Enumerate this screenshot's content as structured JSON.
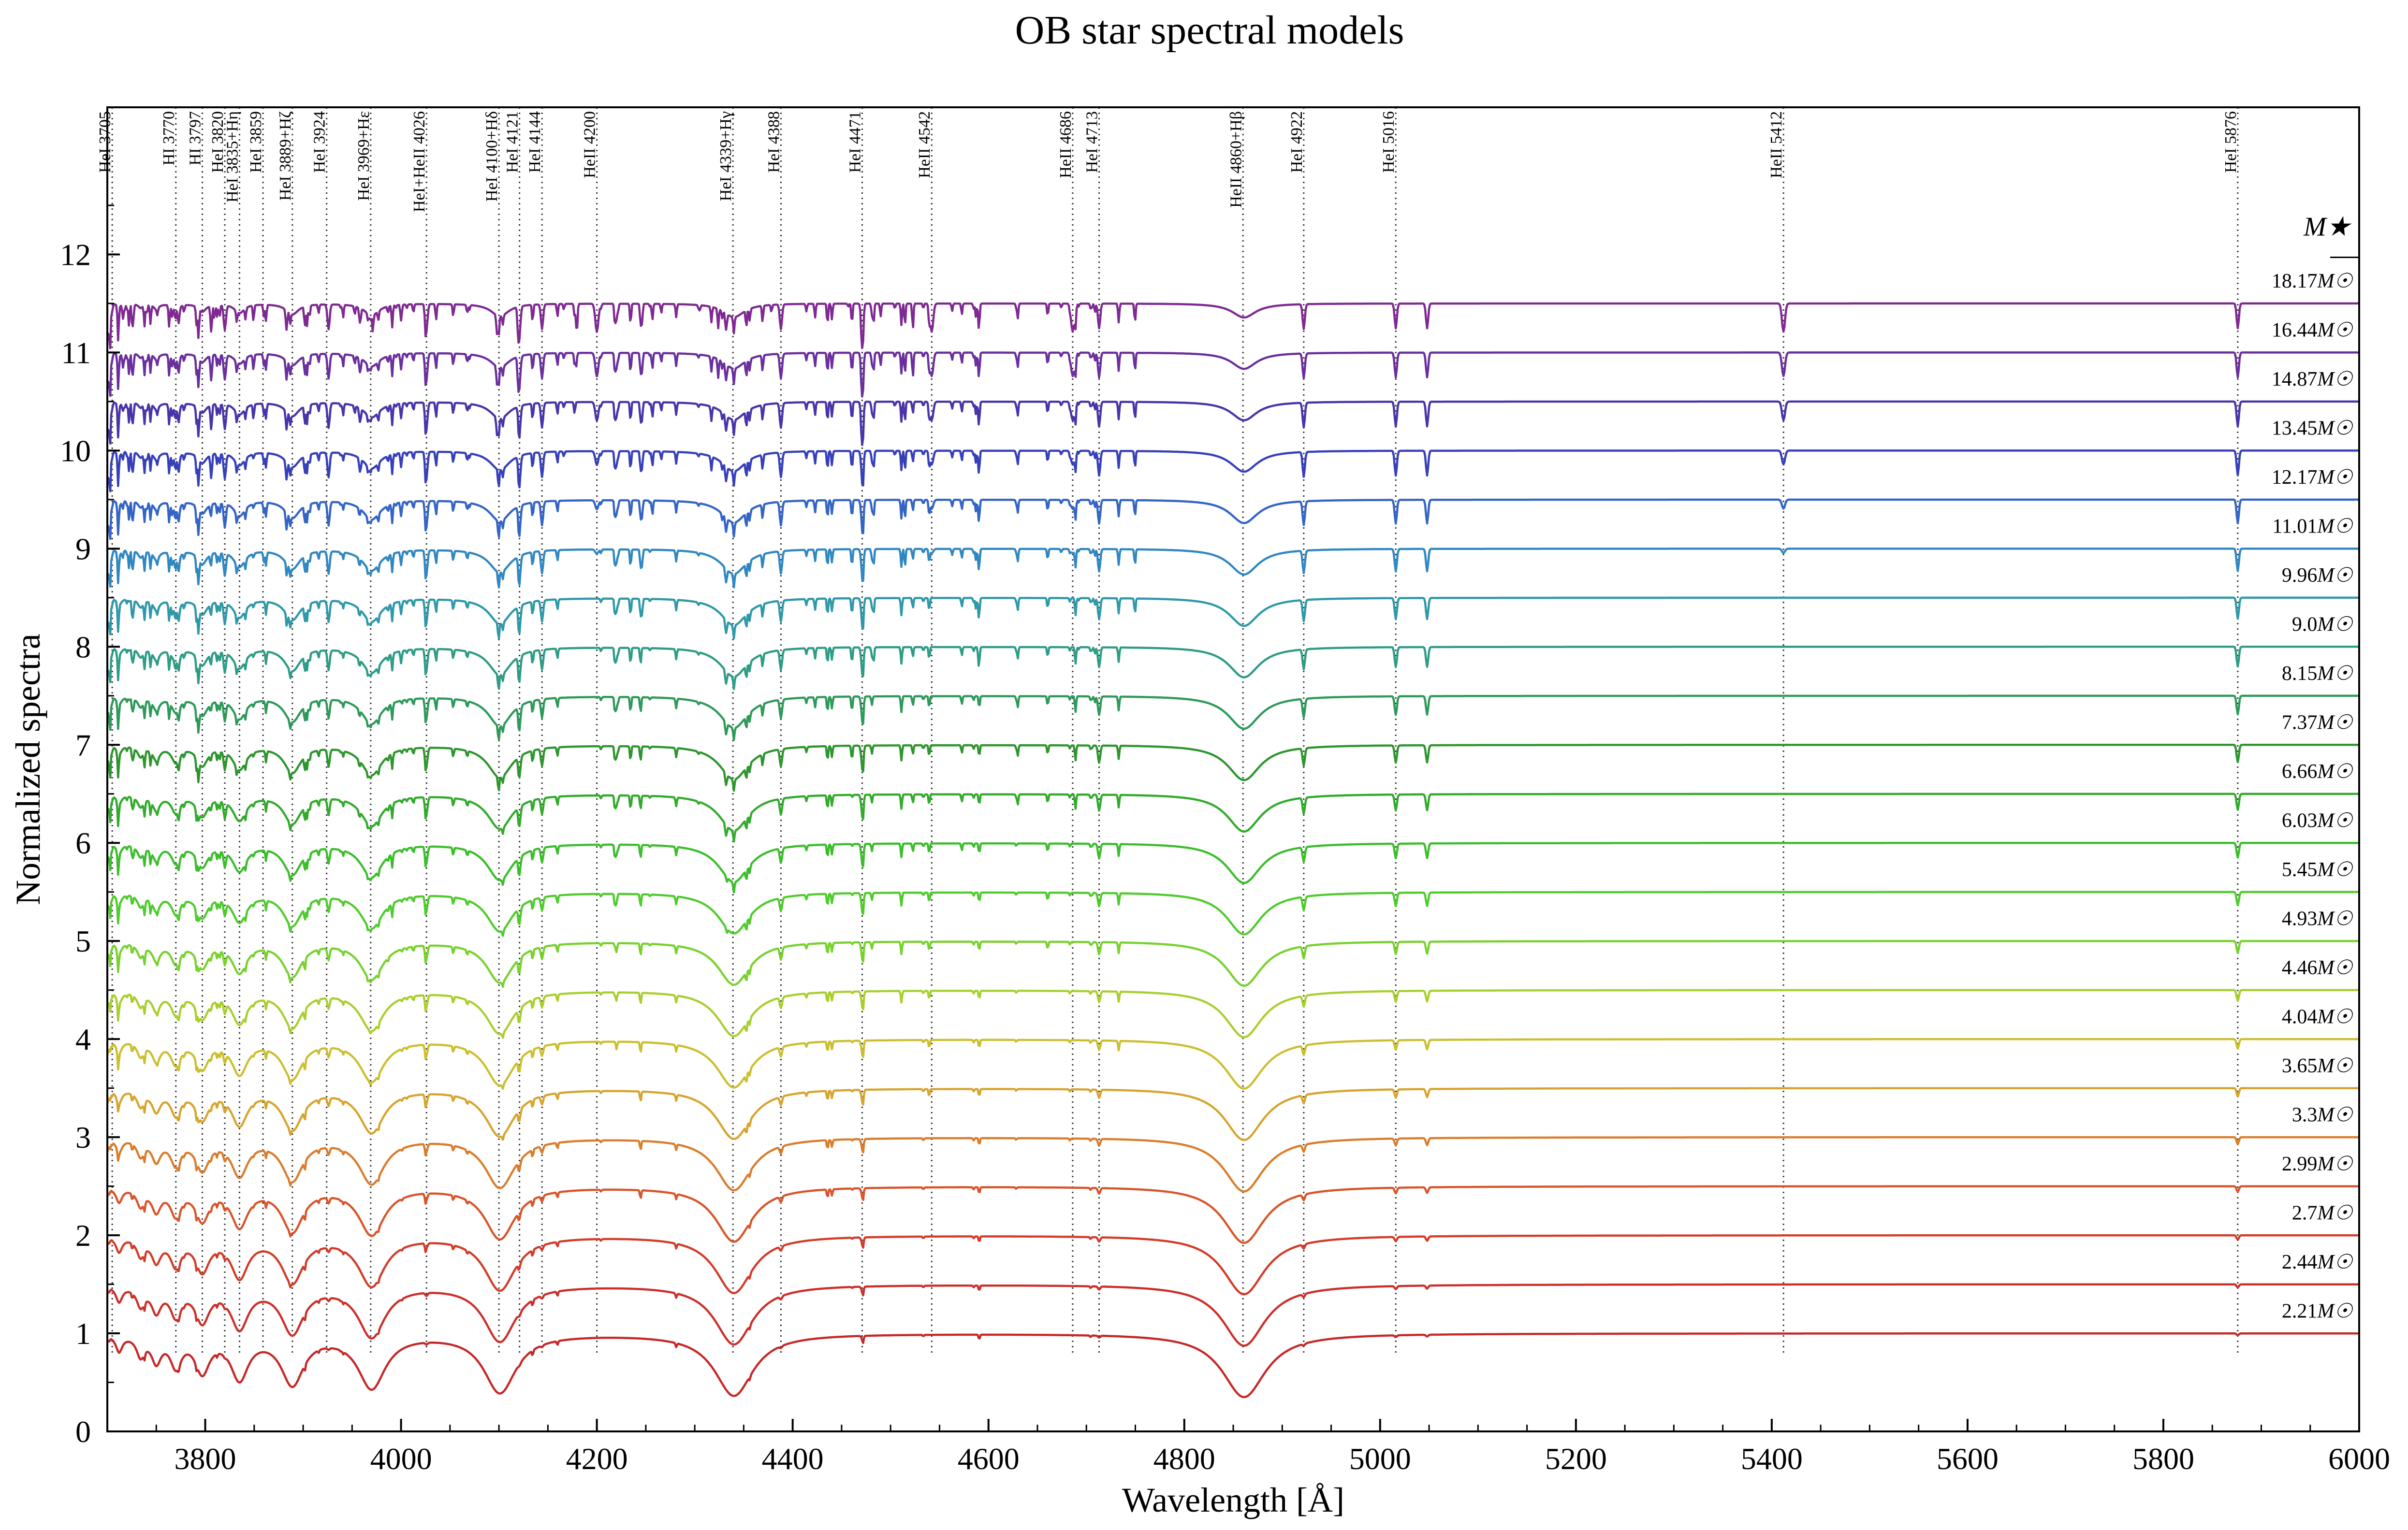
{
  "chart_data": {
    "type": "line",
    "title": "OB star spectral models",
    "xlabel": "Wavelength [Å]",
    "ylabel": "Normalized spectra",
    "xlim": [
      3700,
      6000
    ],
    "ylim": [
      0,
      13.5
    ],
    "xticks": [
      3800,
      4000,
      4200,
      4400,
      4600,
      4800,
      5000,
      5200,
      5400,
      5600,
      5800,
      6000
    ],
    "yticks": [
      0,
      1,
      2,
      3,
      4,
      5,
      6,
      7,
      8,
      9,
      10,
      11,
      12
    ],
    "offset_step": 0.5,
    "legend_title": "M★",
    "legend_unit": "M☉",
    "lines": [
      {
        "label": "HeI 3705",
        "wavelength": 3705
      },
      {
        "label": "HI 3770",
        "wavelength": 3770
      },
      {
        "label": "HI 3797",
        "wavelength": 3797
      },
      {
        "label": "HeI 3820",
        "wavelength": 3820
      },
      {
        "label": "HeI 3835+Hη",
        "wavelength": 3835
      },
      {
        "label": "HeI 3859",
        "wavelength": 3859
      },
      {
        "label": "HeI 3889+Hζ",
        "wavelength": 3889
      },
      {
        "label": "HeI 3924",
        "wavelength": 3924
      },
      {
        "label": "HeI 3969+Hε",
        "wavelength": 3969
      },
      {
        "label": "HeI+HeII 4026",
        "wavelength": 4026
      },
      {
        "label": "HeI 4100+Hδ",
        "wavelength": 4100
      },
      {
        "label": "HeI 4121",
        "wavelength": 4121
      },
      {
        "label": "HeI 4144",
        "wavelength": 4144
      },
      {
        "label": "HeII 4200",
        "wavelength": 4200
      },
      {
        "label": "HeI 4339+Hγ",
        "wavelength": 4339
      },
      {
        "label": "HeI 4388",
        "wavelength": 4388
      },
      {
        "label": "HeI 4471",
        "wavelength": 4471
      },
      {
        "label": "HeII 4542",
        "wavelength": 4542
      },
      {
        "label": "HeII 4686",
        "wavelength": 4686
      },
      {
        "label": "HeI 4713",
        "wavelength": 4713
      },
      {
        "label": "HeII 4860+Hβ",
        "wavelength": 4860
      },
      {
        "label": "HeI 4922",
        "wavelength": 4922
      },
      {
        "label": "HeI 5016",
        "wavelength": 5016
      },
      {
        "label": "HeII 5412",
        "wavelength": 5412
      },
      {
        "label": "HeI 5876",
        "wavelength": 5876
      }
    ],
    "series": [
      {
        "name": "2.21",
        "offset": 1.0,
        "color": "#c62828"
      },
      {
        "name": "2.44",
        "offset": 1.5,
        "color": "#cc2f2a"
      },
      {
        "name": "2.7",
        "offset": 2.0,
        "color": "#d23c2a"
      },
      {
        "name": "2.99",
        "offset": 2.5,
        "color": "#d9552b"
      },
      {
        "name": "3.3",
        "offset": 3.0,
        "color": "#da7d2c"
      },
      {
        "name": "3.65",
        "offset": 3.5,
        "color": "#d7a42e"
      },
      {
        "name": "4.04",
        "offset": 4.0,
        "color": "#ccbf2f"
      },
      {
        "name": "4.46",
        "offset": 4.5,
        "color": "#a9cf2f"
      },
      {
        "name": "4.93",
        "offset": 5.0,
        "color": "#78d22e"
      },
      {
        "name": "5.45",
        "offset": 5.5,
        "color": "#4fcc2d"
      },
      {
        "name": "6.03",
        "offset": 6.0,
        "color": "#3cbe2c"
      },
      {
        "name": "6.66",
        "offset": 6.5,
        "color": "#32ab2c"
      },
      {
        "name": "7.37",
        "offset": 7.0,
        "color": "#2e962f"
      },
      {
        "name": "8.15",
        "offset": 7.5,
        "color": "#2e9a5a"
      },
      {
        "name": "9.0",
        "offset": 8.0,
        "color": "#2e9c86"
      },
      {
        "name": "9.96",
        "offset": 8.5,
        "color": "#2f99a9"
      },
      {
        "name": "11.01",
        "offset": 9.0,
        "color": "#3088c2"
      },
      {
        "name": "12.17",
        "offset": 9.5,
        "color": "#3465c6"
      },
      {
        "name": "13.45",
        "offset": 10.0,
        "color": "#3740bb"
      },
      {
        "name": "14.87",
        "offset": 10.5,
        "color": "#4a34aa"
      },
      {
        "name": "16.44",
        "offset": 11.0,
        "color": "#6b2f9e"
      },
      {
        "name": "18.17",
        "offset": 11.5,
        "color": "#7f2a92"
      }
    ]
  }
}
